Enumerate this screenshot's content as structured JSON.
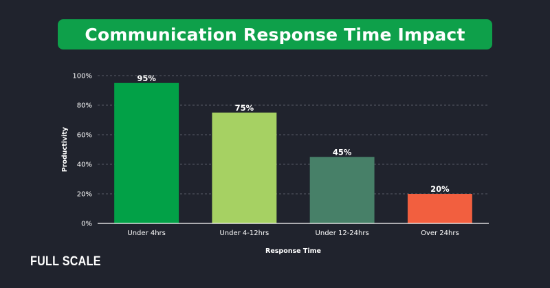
{
  "brand": {
    "logo_text": "FULL SCALE"
  },
  "colors": {
    "background": "#20232d",
    "title_banner": "#0ea04a"
  },
  "chart_data": {
    "type": "bar",
    "title": "Communication Response Time Impact",
    "xlabel": "Response Time",
    "ylabel": "Productivity",
    "categories": [
      "Under 4hrs",
      "Under 4-12hrs",
      "Under 12-24hrs",
      "Over 24hrs"
    ],
    "values": [
      95,
      75,
      45,
      20
    ],
    "data_labels": [
      "95%",
      "75%",
      "45%",
      "20%"
    ],
    "bar_colors": [
      "#02a147",
      "#a6d163",
      "#478068",
      "#f25f3f"
    ],
    "ylim": [
      0,
      100
    ],
    "yticks": [
      0,
      20,
      40,
      60,
      80,
      100
    ],
    "ytick_labels": [
      "0%",
      "20%",
      "40%",
      "60%",
      "80%",
      "100%"
    ],
    "grid": true,
    "legend": "none"
  }
}
